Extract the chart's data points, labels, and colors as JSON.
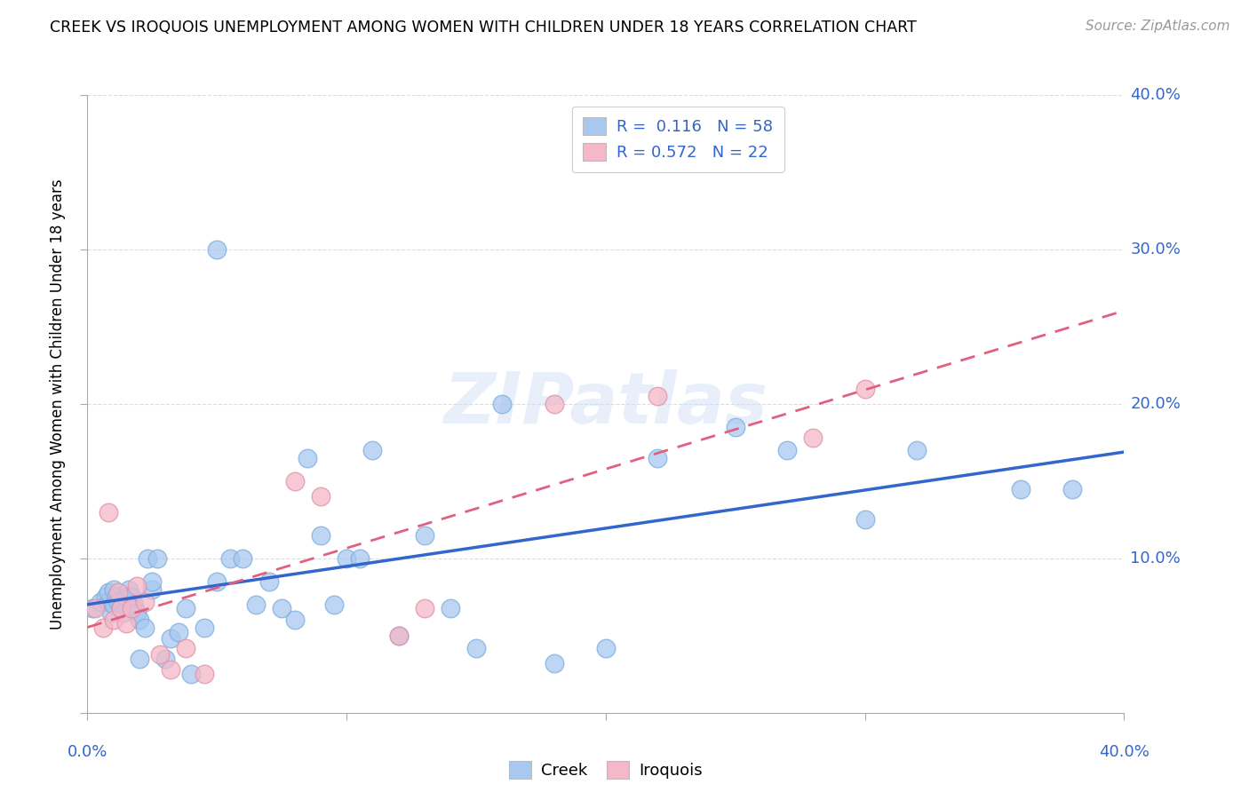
{
  "title": "CREEK VS IROQUOIS UNEMPLOYMENT AMONG WOMEN WITH CHILDREN UNDER 18 YEARS CORRELATION CHART",
  "source": "Source: ZipAtlas.com",
  "ylabel": "Unemployment Among Women with Children Under 18 years",
  "xlim": [
    0.0,
    0.4
  ],
  "ylim": [
    0.0,
    0.4
  ],
  "xticks": [
    0.0,
    0.1,
    0.2,
    0.3,
    0.4
  ],
  "yticks": [
    0.0,
    0.1,
    0.2,
    0.3,
    0.4
  ],
  "creek_color": "#a8c8f0",
  "creek_edge_color": "#7aaede",
  "iroquois_color": "#f4b8c8",
  "iroquois_edge_color": "#e090aa",
  "creek_line_color": "#3366cc",
  "iroquois_line_color": "#e06080",
  "watermark": "ZIPatlas",
  "creek_R": 0.116,
  "creek_N": 58,
  "iroquois_R": 0.572,
  "iroquois_N": 22,
  "creek_x": [
    0.002,
    0.005,
    0.007,
    0.008,
    0.008,
    0.009,
    0.01,
    0.01,
    0.011,
    0.012,
    0.013,
    0.014,
    0.015,
    0.016,
    0.017,
    0.018,
    0.019,
    0.02,
    0.02,
    0.022,
    0.023,
    0.025,
    0.025,
    0.027,
    0.03,
    0.032,
    0.035,
    0.038,
    0.04,
    0.045,
    0.05,
    0.05,
    0.055,
    0.06,
    0.065,
    0.07,
    0.075,
    0.08,
    0.085,
    0.09,
    0.095,
    0.1,
    0.105,
    0.11,
    0.12,
    0.13,
    0.14,
    0.15,
    0.16,
    0.18,
    0.2,
    0.22,
    0.25,
    0.27,
    0.3,
    0.32,
    0.36,
    0.38
  ],
  "creek_y": [
    0.068,
    0.072,
    0.075,
    0.072,
    0.078,
    0.065,
    0.07,
    0.08,
    0.075,
    0.072,
    0.068,
    0.065,
    0.075,
    0.08,
    0.075,
    0.07,
    0.065,
    0.035,
    0.06,
    0.055,
    0.1,
    0.08,
    0.085,
    0.1,
    0.035,
    0.048,
    0.052,
    0.068,
    0.025,
    0.055,
    0.085,
    0.3,
    0.1,
    0.1,
    0.07,
    0.085,
    0.068,
    0.06,
    0.165,
    0.115,
    0.07,
    0.1,
    0.1,
    0.17,
    0.05,
    0.115,
    0.068,
    0.042,
    0.2,
    0.032,
    0.042,
    0.165,
    0.185,
    0.17,
    0.125,
    0.17,
    0.145,
    0.145
  ],
  "iroquois_x": [
    0.003,
    0.006,
    0.008,
    0.01,
    0.012,
    0.013,
    0.015,
    0.017,
    0.019,
    0.022,
    0.028,
    0.032,
    0.038,
    0.045,
    0.08,
    0.09,
    0.12,
    0.13,
    0.18,
    0.22,
    0.28,
    0.3
  ],
  "iroquois_y": [
    0.068,
    0.055,
    0.13,
    0.06,
    0.078,
    0.068,
    0.058,
    0.068,
    0.082,
    0.072,
    0.038,
    0.028,
    0.042,
    0.025,
    0.15,
    0.14,
    0.05,
    0.068,
    0.2,
    0.205,
    0.178,
    0.21
  ],
  "grid_color": "#dddddd",
  "tick_color": "#aaaaaa",
  "label_color": "#3366cc",
  "background_color": "#ffffff"
}
